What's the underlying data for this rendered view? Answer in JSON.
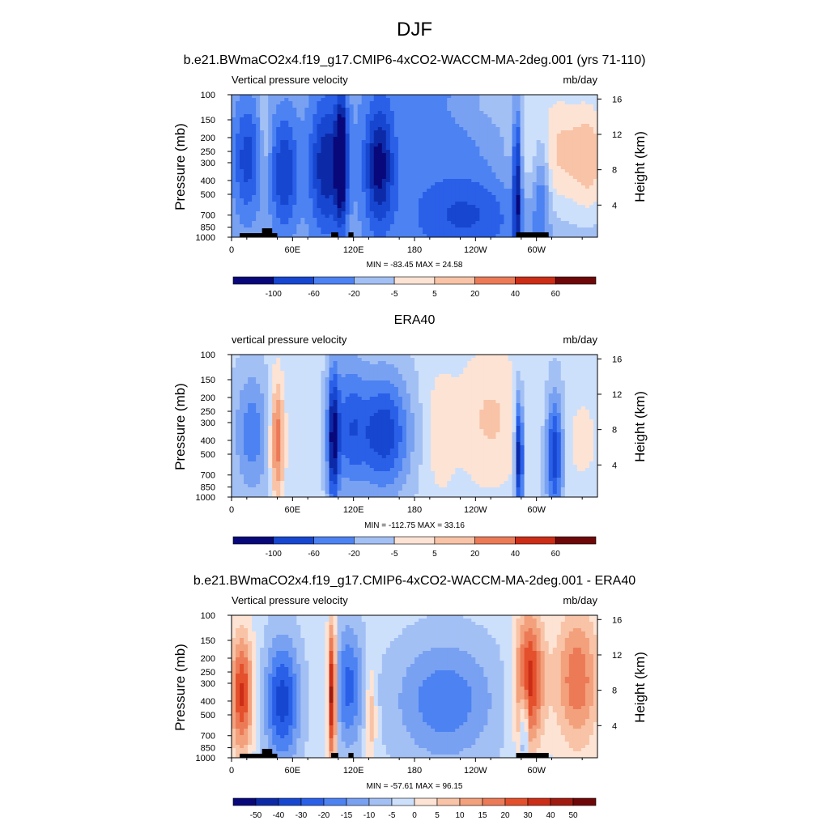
{
  "figure": {
    "title": "DJF"
  },
  "chart_data": [
    {
      "type": "heatmap",
      "title": "b.e21.BWmaCO2x4.f19_g17.CMIP6-4xCO2-WACCM-MA-2deg.001 (yrs 71-110)",
      "left_label": "Vertical pressure velocity",
      "right_label": "mb/day",
      "ylabel": "Pressure (mb)",
      "y2label": "Height (km)",
      "x_ticks": [
        "0",
        "60E",
        "120E",
        "180",
        "120W",
        "60W"
      ],
      "y_ticks": [
        "100",
        "150",
        "200",
        "250",
        "300",
        "400",
        "500",
        "700",
        "850",
        "1000"
      ],
      "y2_ticks": [
        "16",
        "12",
        "8",
        "4"
      ],
      "stats": "MIN = -83.45  MAX =  24.58",
      "colorbar_labels": [
        "-100",
        "-60",
        "-20",
        "-5",
        "5",
        "20",
        "40",
        "60"
      ],
      "x_range": [
        0,
        360
      ],
      "y_range": [
        1000,
        100
      ],
      "y_scale": "log",
      "min": -83.45,
      "max": 24.58,
      "palette": "blue-white-red",
      "fill_pattern": "model"
    },
    {
      "type": "heatmap",
      "title": "ERA40",
      "left_label": "vertical pressure velocity",
      "right_label": "mb/day",
      "ylabel": "Pressure (mb)",
      "y2label": "Height (km)",
      "x_ticks": [
        "0",
        "60E",
        "120E",
        "180",
        "120W",
        "60W"
      ],
      "y_ticks": [
        "100",
        "150",
        "200",
        "250",
        "300",
        "400",
        "500",
        "700",
        "850",
        "1000"
      ],
      "y2_ticks": [
        "16",
        "12",
        "8",
        "4"
      ],
      "stats": "MIN = -112.75  MAX =  33.16",
      "colorbar_labels": [
        "-100",
        "-60",
        "-20",
        "-5",
        "5",
        "20",
        "40",
        "60"
      ],
      "x_range": [
        0,
        360
      ],
      "y_range": [
        1000,
        100
      ],
      "y_scale": "log",
      "min": -112.75,
      "max": 33.16,
      "palette": "blue-white-red",
      "fill_pattern": "obs"
    },
    {
      "type": "heatmap",
      "title": "b.e21.BWmaCO2x4.f19_g17.CMIP6-4xCO2-WACCM-MA-2deg.001 - ERA40",
      "left_label": "Vertical pressure velocity",
      "right_label": "mb/day",
      "ylabel": "Pressure (mb)",
      "y2label": "Height (km)",
      "x_ticks": [
        "0",
        "60E",
        "120E",
        "180",
        "120W",
        "60W"
      ],
      "y_ticks": [
        "100",
        "150",
        "200",
        "250",
        "300",
        "400",
        "500",
        "700",
        "850",
        "1000"
      ],
      "y2_ticks": [
        "16",
        "12",
        "8",
        "4"
      ],
      "stats": "MIN = -57.61  MAX =  96.15",
      "colorbar_labels": [
        "-50",
        "-40",
        "-30",
        "-20",
        "-15",
        "-10",
        "-5",
        "0",
        "5",
        "10",
        "15",
        "20",
        "30",
        "40",
        "50"
      ],
      "x_range": [
        0,
        360
      ],
      "y_range": [
        1000,
        100
      ],
      "y_scale": "log",
      "min": -57.61,
      "max": 96.15,
      "palette": "blue-white-red",
      "fill_pattern": "diff"
    }
  ],
  "colors": {
    "palette": [
      "#08087a",
      "#0c2aa8",
      "#1747d0",
      "#2a5fe8",
      "#4c82f2",
      "#79a1f2",
      "#a3c0f5",
      "#cde0fb",
      "#fde3d4",
      "#f8c3a6",
      "#f3a07c",
      "#ec7a57",
      "#e4502c",
      "#cc2d17",
      "#a11a10",
      "#6e0808"
    ],
    "land": "#000000"
  }
}
